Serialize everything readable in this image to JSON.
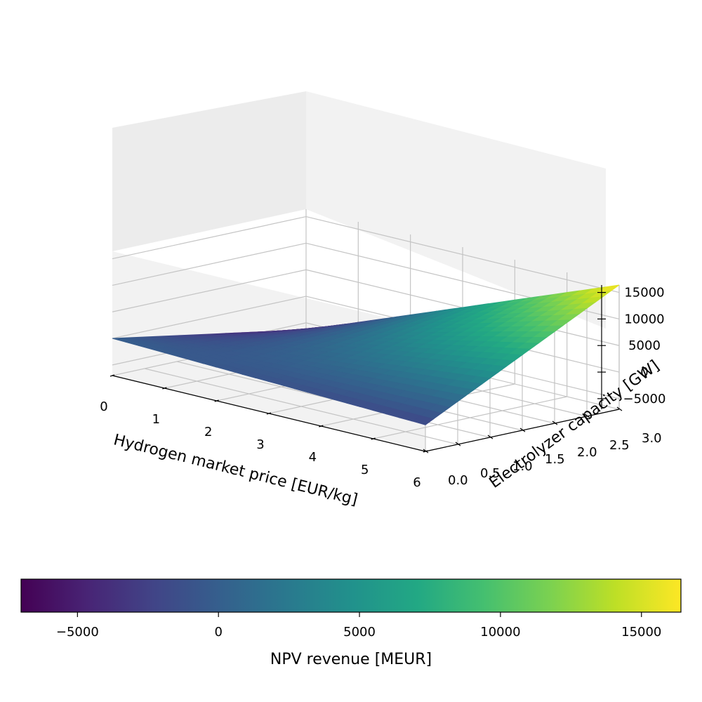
{
  "chart_data": {
    "type": "surface3d",
    "title": "",
    "colormap": "viridis",
    "x": {
      "label": "Hydrogen market price [EUR/kg]",
      "range": [
        0,
        6
      ],
      "ticks": [
        0,
        1,
        2,
        3,
        4,
        5,
        6
      ],
      "tick_labels": [
        "0",
        "1",
        "2",
        "3",
        "4",
        "5",
        "6"
      ]
    },
    "y": {
      "label": "Electrolyzer capacity [GW]",
      "range": [
        0,
        3
      ],
      "ticks": [
        0,
        0.5,
        1,
        1.5,
        2,
        2.5,
        3
      ],
      "tick_labels": [
        "0.0",
        "0.5",
        "1.0",
        "1.5",
        "2.0",
        "2.5",
        "3.0"
      ]
    },
    "z": {
      "label": "",
      "range": [
        -7000,
        16400
      ],
      "ticks": [
        -5000,
        0,
        5000,
        10000,
        15000
      ],
      "tick_labels": [
        "−5000",
        "0",
        "5000",
        "10000",
        "15000"
      ]
    },
    "surface_corners": [
      {
        "x": 0,
        "y": 0,
        "z": 0
      },
      {
        "x": 6,
        "y": 0,
        "z": -2000
      },
      {
        "x": 0,
        "y": 3,
        "z": -6300
      },
      {
        "x": 6,
        "y": 3,
        "z": 16400
      }
    ],
    "colorbar": {
      "label": "NPV revenue [MEUR]",
      "range": [
        -7000,
        16400
      ],
      "ticks": [
        -5000,
        0,
        5000,
        10000,
        15000
      ],
      "tick_labels": [
        "−5000",
        "0",
        "5000",
        "10000",
        "15000"
      ]
    }
  }
}
